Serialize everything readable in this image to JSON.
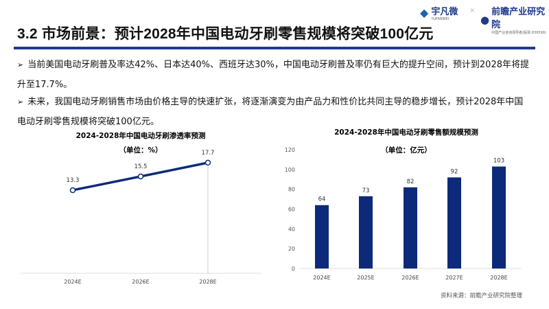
{
  "header": {
    "logo_left": "宇凡微",
    "logo_left_sub": "YUFANWEI",
    "separator": "×",
    "logo_right": "前瞻产业研究院",
    "logo_right_sub": "中国产业咨询领导者(股票:839599)"
  },
  "title": "3.2 市场前景：预计2028年中国电动牙刷零售规模将突破100亿元",
  "bullets": [
    "当前美国电动牙刷普及率达42%、日本达40%、西班牙达30%，中国电动牙刷普及率仍有巨大的提升空间，预计到2028年将提升至17.7%。",
    "未来，我国电动牙刷销售市场由价格主导的快速扩张，将逐渐演变为由产品力和性价比共同主导的稳步增长，预计2028年中国电动牙刷零售规模将突破100亿元。"
  ],
  "source": "资料来源：前瞻产业研究院整理",
  "chart_data": [
    {
      "type": "line",
      "title": "2024-2028年中国电动牙刷渗透率预测",
      "subtitle": "（单位：%）",
      "categories": [
        "2024E",
        "2026E",
        "2028E"
      ],
      "values": [
        13.3,
        15.5,
        17.7
      ],
      "value_labels": [
        "13.3",
        "15.5",
        "17.7"
      ],
      "color": "#0d2a7a",
      "grid": false
    },
    {
      "type": "bar",
      "title": "2024-2028年中国电动牙刷零售额规模预测",
      "subtitle": "（单位：亿元）",
      "categories": [
        "2024E",
        "2025E",
        "2026E",
        "2027E",
        "2028E"
      ],
      "values": [
        64,
        73,
        82,
        92,
        103
      ],
      "ylim": [
        0,
        120
      ],
      "yticks": [
        "0",
        "20",
        "40",
        "60",
        "80",
        "100",
        "120"
      ],
      "color": "#0d2a7a",
      "grid": false
    }
  ]
}
